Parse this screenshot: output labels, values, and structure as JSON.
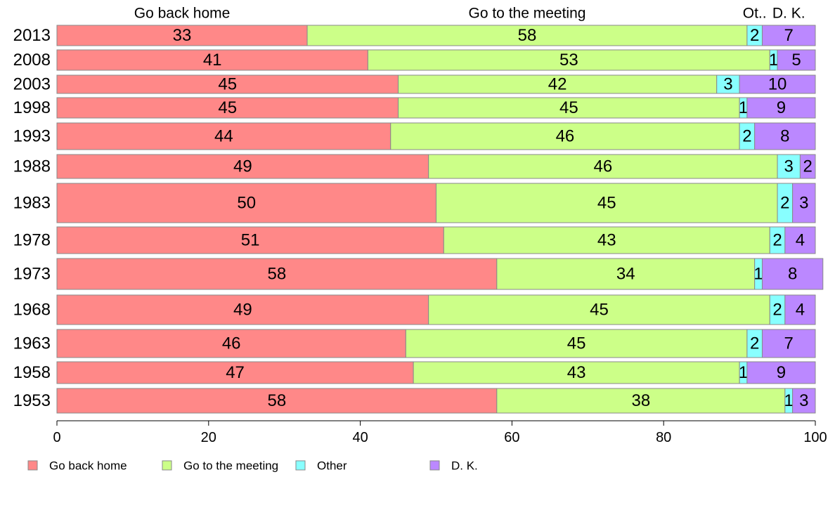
{
  "chart_data": {
    "type": "bar",
    "orientation": "horizontal",
    "stacked": true,
    "categories": [
      "2013",
      "2008",
      "2003",
      "1998",
      "1993",
      "1988",
      "1983",
      "1978",
      "1973",
      "1968",
      "1963",
      "1958",
      "1953"
    ],
    "series": [
      {
        "name": "Go back home",
        "color": "#ff8888",
        "values": [
          33,
          41,
          45,
          45,
          44,
          49,
          50,
          51,
          58,
          49,
          46,
          47,
          58
        ]
      },
      {
        "name": "Go to the meeting",
        "color": "#ccff88",
        "values": [
          58,
          53,
          42,
          45,
          46,
          46,
          45,
          43,
          34,
          45,
          45,
          43,
          38
        ]
      },
      {
        "name": "Other",
        "color": "#88ffff",
        "values": [
          2,
          1,
          3,
          1,
          2,
          3,
          2,
          2,
          1,
          2,
          2,
          1,
          1
        ]
      },
      {
        "name": "D. K.",
        "color": "#bb88ff",
        "values": [
          7,
          5,
          10,
          9,
          8,
          2,
          3,
          4,
          8,
          4,
          7,
          9,
          3
        ]
      }
    ],
    "header_labels": [
      "Go back home",
      "Go to the meeting",
      "Ot..",
      "D. K."
    ],
    "xlim": [
      0,
      100
    ],
    "xticks": [
      0,
      20,
      40,
      60,
      80,
      100
    ],
    "grid": false,
    "legend_position": "bottom-left"
  }
}
